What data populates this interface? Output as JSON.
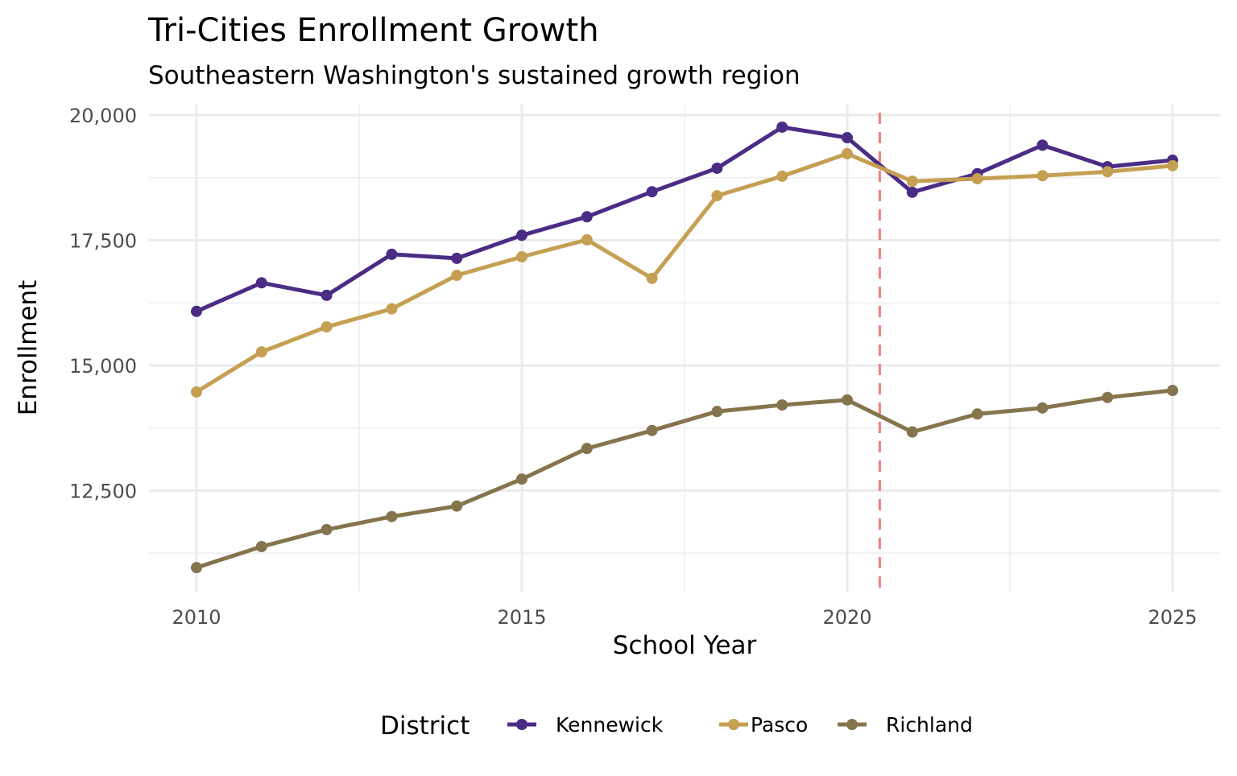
{
  "chart_data": {
    "type": "line",
    "title": "Tri-Cities Enrollment Growth",
    "subtitle": "Southeastern Washington's sustained growth region",
    "xlabel": "School Year",
    "ylabel": "Enrollment",
    "x": [
      2010,
      2011,
      2012,
      2013,
      2014,
      2015,
      2016,
      2017,
      2018,
      2019,
      2020,
      2021,
      2022,
      2023,
      2024,
      2025
    ],
    "xlim": [
      2009.27,
      2025.73
    ],
    "ylim": [
      10480,
      20210
    ],
    "x_ticks": [
      2010,
      2015,
      2020,
      2025
    ],
    "x_tick_labels": [
      "2010",
      "2015",
      "2020",
      "2025"
    ],
    "y_ticks": [
      12500,
      15000,
      17500,
      20000
    ],
    "y_tick_labels": [
      "12,500",
      "15,000",
      "17,500",
      "20,000"
    ],
    "grid": true,
    "reference_line": {
      "x": 2020.5,
      "style": "dashed",
      "color": "#F47C7C"
    },
    "legend": {
      "title": "District",
      "placement": "bottom"
    },
    "series": [
      {
        "name": "Kennewick",
        "color": "#4B2C85",
        "values": [
          16080,
          16650,
          16400,
          17220,
          17140,
          17600,
          17970,
          18470,
          18940,
          19760,
          19550,
          18460,
          18830,
          19400,
          18970,
          19100
        ]
      },
      {
        "name": "Pasco",
        "color": "#C5A052",
        "values": [
          14470,
          15270,
          15770,
          16130,
          16800,
          17170,
          17510,
          16740,
          18390,
          18780,
          19230,
          18680,
          18730,
          18790,
          18870,
          18990
        ]
      },
      {
        "name": "Richland",
        "color": "#85754D",
        "values": [
          10960,
          11380,
          11720,
          11980,
          12190,
          12730,
          13340,
          13700,
          14080,
          14210,
          14310,
          13670,
          14030,
          14150,
          14360,
          14500
        ]
      }
    ]
  }
}
